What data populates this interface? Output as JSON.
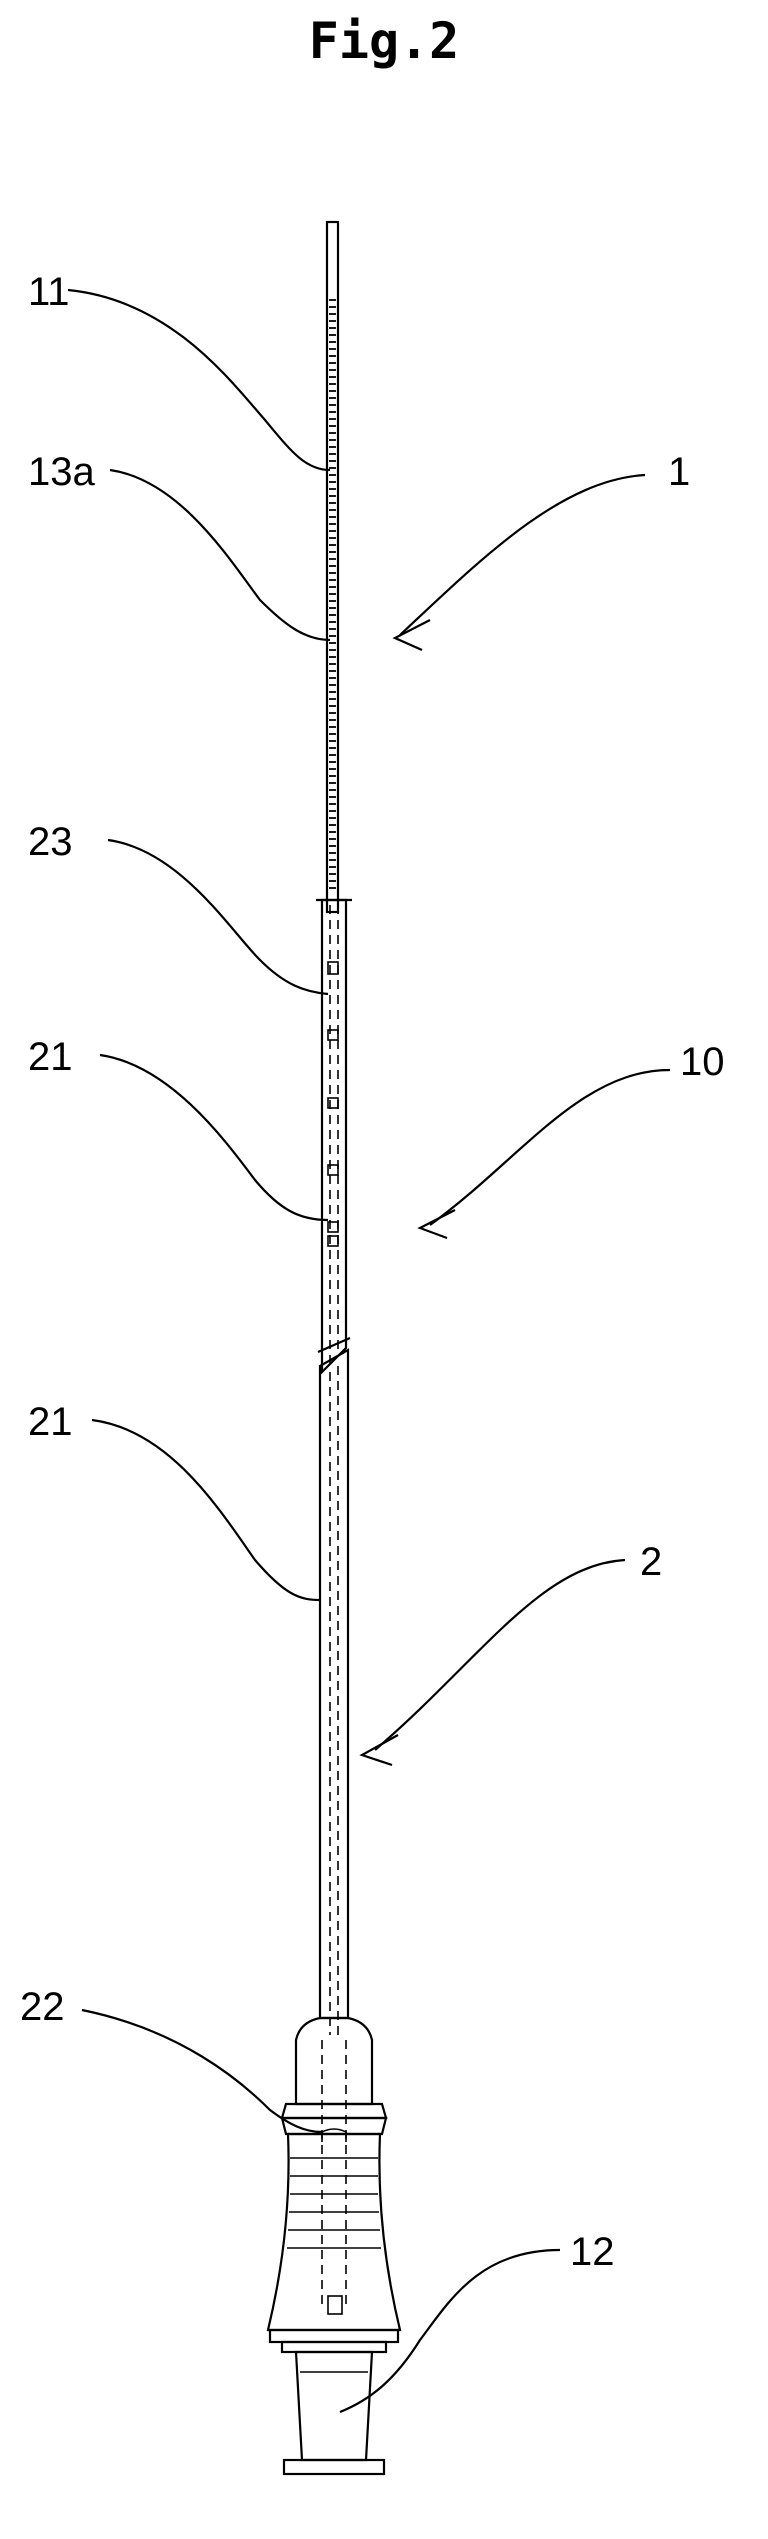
{
  "figure": {
    "title": "Fig.2"
  },
  "labels": {
    "wire": "11",
    "coil": "13a",
    "assembly": "1",
    "marker": "23",
    "sheath_upper": "21",
    "device": "10",
    "sheath_lower": "21",
    "catheter": "2",
    "hub": "22",
    "connector": "12"
  }
}
